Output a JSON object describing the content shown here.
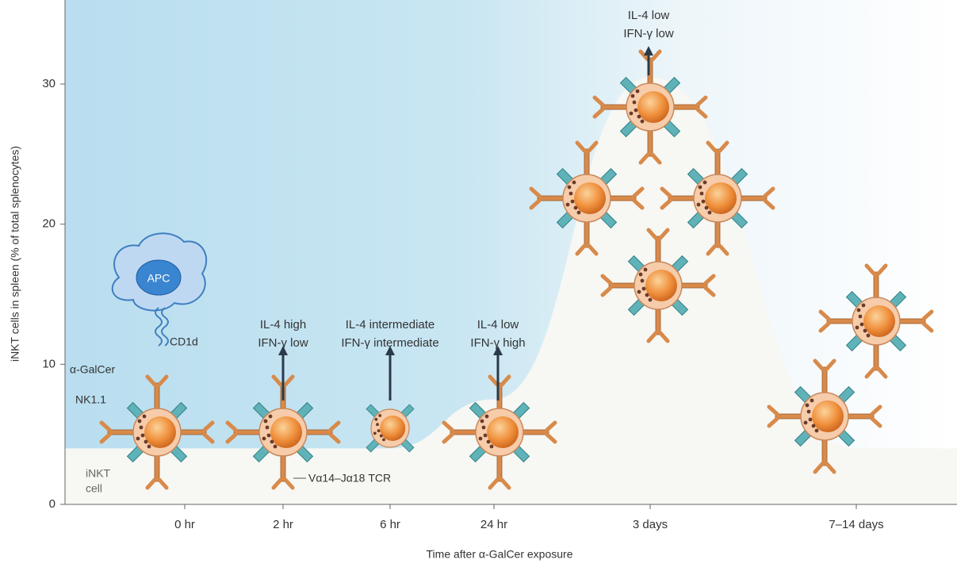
{
  "chart_data": {
    "type": "area",
    "y_label": "iNKT cells in spleen (% of total splenocytes)",
    "x_label": "Time after α-GalCer exposure",
    "categories": [
      "0 hr",
      "2 hr",
      "6 hr",
      "24 hr",
      "3 days",
      "7–14 days"
    ],
    "values": [
      4,
      4,
      4,
      7.5,
      30.5,
      4
    ],
    "color": "#f7f7f3",
    "ylim": [
      0,
      36
    ],
    "yticks": [
      0,
      10,
      20,
      30
    ],
    "annotations": [
      [
        "IL-4 high",
        "IFN-γ low"
      ],
      [
        "IL-4 intermediate",
        "IFN-γ intermediate"
      ],
      [
        "IL-4 low",
        "IFN-γ high"
      ],
      [
        "IL-4 low",
        "IFN-γ low"
      ]
    ],
    "labels": {
      "apc": "APC",
      "cd1d": "CD1d",
      "galcer": "α-GalCer",
      "nk": "NK1.1",
      "inkt": "iNKT",
      "cell": "cell",
      "tcr": "Vα14–Jα18 TCR"
    }
  }
}
